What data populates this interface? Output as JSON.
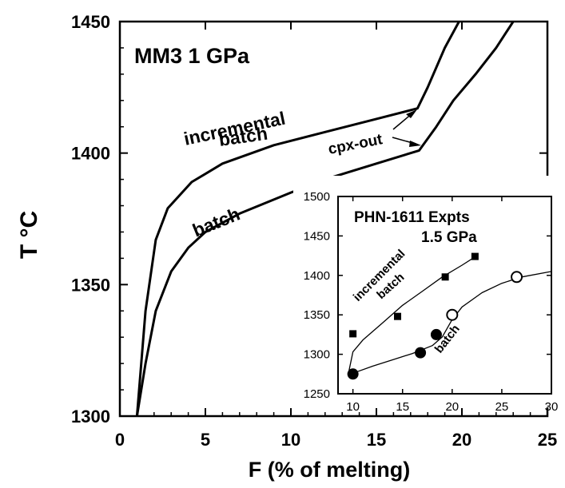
{
  "chart_data": [
    {
      "type": "line",
      "title": "MM3 1 GPa",
      "xlabel": "F (% of melting)",
      "ylabel": "T °C",
      "xlim": [
        0,
        25
      ],
      "ylim": [
        1300,
        1450
      ],
      "xticks": [
        0,
        5,
        10,
        15,
        20,
        25
      ],
      "yticks": [
        1300,
        1350,
        1400,
        1450
      ],
      "grid": false,
      "series": [
        {
          "name": "incremental batch",
          "x": [
            1.0,
            1.5,
            2.1,
            2.8,
            4.2,
            6.0,
            9.0,
            12.0,
            15.0,
            17.4,
            18.0,
            19.0,
            20.0,
            20.9
          ],
          "y": [
            1300,
            1340,
            1367,
            1379,
            1389,
            1396,
            1403,
            1408,
            1413,
            1417,
            1425,
            1440,
            1452,
            1463
          ]
        },
        {
          "name": "batch",
          "x": [
            1.0,
            1.5,
            2.1,
            3.0,
            4.0,
            5.0,
            7.0,
            10.0,
            12.0,
            15.0,
            17.5,
            18.5,
            19.5,
            20.8,
            22.0,
            24.0
          ],
          "y": [
            1300,
            1320,
            1340,
            1355,
            1364,
            1370,
            1377,
            1385,
            1390,
            1396,
            1401,
            1410,
            1420,
            1430,
            1440,
            1460
          ]
        }
      ],
      "annotations": [
        "incremental",
        "batch",
        "batch",
        "cpx-out"
      ]
    },
    {
      "type": "scatter",
      "title": "PHN-1611 Expts",
      "subtitle": "1.5 GPa",
      "xlim": [
        8.5,
        30
      ],
      "ylim": [
        1250,
        1500
      ],
      "xticks": [
        10,
        15,
        20,
        25,
        30
      ],
      "yticks": [
        1250,
        1300,
        1350,
        1400,
        1450,
        1500
      ],
      "series": [
        {
          "name": "incremental batch",
          "marker": "filled-square",
          "x": [
            10,
            14.5,
            19.3,
            22.3
          ],
          "y": [
            1326,
            1348,
            1398,
            1424
          ]
        },
        {
          "name": "batch",
          "marker": "filled-circle",
          "x": [
            10,
            16.8,
            18.4
          ],
          "y": [
            1275,
            1302,
            1325
          ]
        },
        {
          "name": "batch",
          "marker": "open-circle",
          "x": [
            20,
            26.5
          ],
          "y": [
            1350,
            1398
          ]
        }
      ],
      "fit_lines": [
        {
          "name": "incremental batch",
          "x": [
            9.6,
            10.0,
            11.0,
            13.0,
            15.0,
            17.0,
            19.0,
            21.0,
            22.5
          ],
          "y": [
            1279,
            1303,
            1318,
            1340,
            1362,
            1380,
            1398,
            1413,
            1425
          ]
        },
        {
          "name": "batch",
          "x": [
            9.6,
            10.0,
            12.0,
            14.0,
            16.0,
            18.0,
            19.0,
            20.0,
            21.0,
            23.0,
            25.0,
            27.0,
            30.0
          ],
          "y": [
            1274,
            1276,
            1285,
            1293,
            1301,
            1311,
            1322,
            1344,
            1360,
            1378,
            1390,
            1398,
            1405
          ]
        }
      ],
      "annotations": [
        "incremental",
        "batch",
        "batch"
      ]
    }
  ]
}
